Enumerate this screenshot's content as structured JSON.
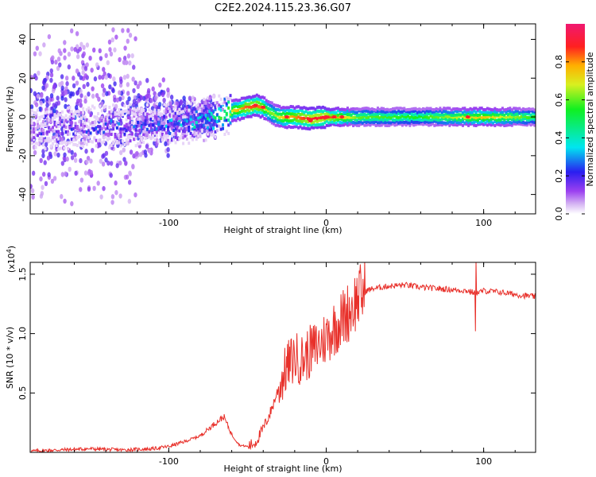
{
  "title": "C2E2.2024.115.23.36.G07",
  "chart_data": [
    {
      "type": "heatmap",
      "xlabel": "Height of straight line (km)",
      "ylabel": "Frequency (Hz)",
      "xlim": [
        -188,
        133
      ],
      "ylim": [
        -50,
        48
      ],
      "xticks": [
        -100,
        0,
        100
      ],
      "xtick_labels": [
        "-100",
        "0",
        "100"
      ],
      "yticks": [
        -40,
        -20,
        0,
        20,
        40
      ],
      "ytick_labels": [
        "-40",
        "-20",
        "0",
        "20",
        "40"
      ],
      "colorbar": {
        "label": "Normalized spectral amplitude",
        "range": [
          0,
          1
        ],
        "ticks": [
          0.0,
          0.2,
          0.4,
          0.6,
          0.8
        ],
        "tick_labels": [
          "0.0",
          "0.2",
          "0.4",
          "0.6",
          "0.8"
        ]
      },
      "ridge_x": [
        -160,
        -140,
        -120,
        -100,
        -80,
        -70,
        -60,
        -50,
        -45,
        -40,
        -35,
        -30,
        -20,
        -10,
        0,
        20,
        60,
        100,
        133
      ],
      "ridge_freq": [
        -6,
        -5,
        -4,
        -4,
        -2,
        0,
        3,
        5,
        6,
        5,
        2,
        0,
        0,
        -1,
        0,
        0,
        0,
        0,
        0
      ],
      "ridge_amp": [
        0.25,
        0.3,
        0.3,
        0.35,
        0.45,
        0.55,
        0.7,
        0.85,
        0.85,
        0.8,
        0.6,
        0.7,
        0.8,
        0.9,
        0.9,
        0.6,
        0.55,
        0.75,
        0.55
      ]
    },
    {
      "type": "line",
      "xlabel": "Height of straight line (km)",
      "ylabel": "SNR (10 * v/v)",
      "yscale_label": "(x10",
      "yscale_exp": "4",
      "yscale_close": ")",
      "xlim": [
        -188,
        133
      ],
      "ylim": [
        0,
        1.6
      ],
      "xticks": [
        -100,
        0,
        100
      ],
      "xtick_labels": [
        "-100",
        "0",
        "100"
      ],
      "yticks": [
        0.5,
        1.0,
        1.5
      ],
      "ytick_labels": [
        "0.5",
        "1.0",
        "1.5"
      ],
      "series": [
        {
          "name": "SNR",
          "color": "#e8302a",
          "x": [
            -188,
            -170,
            -150,
            -130,
            -110,
            -100,
            -90,
            -80,
            -70,
            -65,
            -60,
            -55,
            -50,
            -45,
            -40,
            -35,
            -30,
            -25,
            -20,
            -15,
            -10,
            -5,
            0,
            5,
            10,
            15,
            20,
            25,
            30,
            40,
            50,
            60,
            70,
            80,
            90,
            95,
            100,
            110,
            120,
            133
          ],
          "y": [
            0.01,
            0.02,
            0.03,
            0.02,
            0.03,
            0.05,
            0.09,
            0.14,
            0.25,
            0.3,
            0.15,
            0.06,
            0.05,
            0.08,
            0.2,
            0.35,
            0.55,
            0.72,
            0.8,
            0.78,
            0.85,
            0.9,
            0.97,
            1.05,
            1.12,
            1.2,
            1.3,
            1.36,
            1.38,
            1.4,
            1.41,
            1.39,
            1.38,
            1.37,
            1.36,
            1.34,
            1.36,
            1.35,
            1.33,
            1.31
          ]
        }
      ]
    }
  ]
}
